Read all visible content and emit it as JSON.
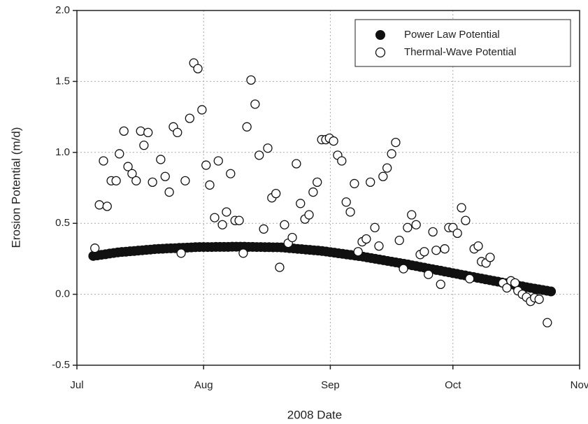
{
  "chart_data": {
    "type": "scatter",
    "xlabel": "2008 Date",
    "ylabel": "Erosion Potential (m/d)",
    "xlim": [
      0,
      123
    ],
    "xticks": [
      {
        "value": 0,
        "label": "Jul"
      },
      {
        "value": 31,
        "label": "Aug"
      },
      {
        "value": 62,
        "label": "Sep"
      },
      {
        "value": 92,
        "label": "Oct"
      },
      {
        "value": 123,
        "label": "Nov"
      }
    ],
    "ylim": [
      -0.5,
      2.0
    ],
    "yticks": [
      -0.5,
      {
        "value": 0,
        "label": "0.0"
      },
      0.5,
      {
        "value": 1,
        "label": "1.0"
      },
      1.5,
      {
        "value": 2,
        "label": "2.0"
      }
    ],
    "grid": true,
    "legend": "upper right",
    "series": [
      {
        "name": "Power Law Potential",
        "color": "#111111",
        "marker": "filled",
        "x": [
          4,
          5,
          6,
          7,
          8,
          9,
          10,
          11,
          12,
          13,
          14,
          15,
          16,
          17,
          18,
          19,
          20,
          21,
          22,
          23,
          24,
          25,
          26,
          27,
          28,
          29,
          30,
          31,
          32,
          33,
          34,
          35,
          36,
          37,
          38,
          39,
          40,
          41,
          42,
          43,
          44,
          45,
          46,
          47,
          48,
          49,
          50,
          51,
          52,
          53,
          54,
          55,
          56,
          57,
          58,
          59,
          60,
          61,
          62,
          63,
          64,
          65,
          66,
          67,
          68,
          69,
          70,
          71,
          72,
          73,
          74,
          75,
          76,
          77,
          78,
          79,
          80,
          81,
          82,
          83,
          84,
          85,
          86,
          87,
          88,
          89,
          90,
          91,
          92,
          93,
          94,
          95,
          96,
          97,
          98,
          99,
          100,
          101,
          102,
          103,
          104,
          105,
          106,
          107,
          108,
          109,
          110,
          111,
          112,
          113,
          114,
          115,
          116
        ],
        "values": [
          0.27,
          0.274,
          0.278,
          0.282,
          0.287,
          0.291,
          0.295,
          0.298,
          0.3,
          0.303,
          0.305,
          0.308,
          0.31,
          0.313,
          0.315,
          0.318,
          0.32,
          0.321,
          0.323,
          0.324,
          0.325,
          0.327,
          0.328,
          0.329,
          0.33,
          0.332,
          0.333,
          0.333,
          0.333,
          0.333,
          0.334,
          0.334,
          0.334,
          0.334,
          0.335,
          0.335,
          0.335,
          0.335,
          0.334,
          0.334,
          0.333,
          0.333,
          0.332,
          0.332,
          0.331,
          0.331,
          0.33,
          0.328,
          0.325,
          0.323,
          0.32,
          0.318,
          0.315,
          0.313,
          0.31,
          0.308,
          0.305,
          0.301,
          0.297,
          0.293,
          0.289,
          0.285,
          0.281,
          0.277,
          0.273,
          0.269,
          0.265,
          0.26,
          0.255,
          0.25,
          0.245,
          0.24,
          0.235,
          0.23,
          0.225,
          0.22,
          0.215,
          0.21,
          0.204,
          0.199,
          0.193,
          0.188,
          0.182,
          0.177,
          0.171,
          0.166,
          0.16,
          0.155,
          0.149,
          0.144,
          0.138,
          0.133,
          0.127,
          0.122,
          0.116,
          0.111,
          0.105,
          0.1,
          0.094,
          0.089,
          0.083,
          0.078,
          0.072,
          0.067,
          0.061,
          0.056,
          0.05,
          0.045,
          0.04,
          0.035,
          0.03,
          0.025,
          0.02
        ]
      },
      {
        "name": "Thermal-Wave Potential",
        "color": "#111111",
        "marker": "open",
        "x": [
          4.4,
          5.5,
          6.5,
          7.4,
          8.4,
          9.6,
          10.4,
          11.5,
          12.5,
          13.5,
          14.5,
          15.6,
          16.4,
          17.4,
          18.5,
          20.5,
          21.6,
          22.6,
          23.6,
          24.6,
          25.5,
          26.5,
          27.6,
          28.6,
          29.6,
          30.6,
          31.6,
          32.5,
          33.7,
          34.6,
          35.6,
          36.6,
          37.6,
          38.7,
          39.7,
          40.7,
          41.6,
          42.6,
          43.6,
          44.6,
          45.7,
          46.7,
          47.7,
          48.7,
          49.6,
          50.8,
          51.7,
          52.7,
          53.7,
          54.7,
          55.8,
          56.8,
          57.8,
          58.8,
          59.9,
          60.9,
          61.8,
          62.8,
          63.8,
          64.8,
          65.9,
          66.9,
          67.9,
          68.8,
          69.8,
          70.8,
          71.8,
          72.9,
          73.9,
          74.9,
          75.9,
          77.0,
          78.0,
          78.9,
          79.9,
          80.9,
          81.9,
          83.0,
          84.0,
          85.0,
          86.0,
          87.1,
          87.9,
          89.0,
          90.0,
          91.0,
          92.0,
          93.1,
          94.1,
          95.1,
          96.1,
          97.2,
          98.2,
          99.0,
          100.1,
          101.1,
          104.2,
          105.2,
          106.2,
          107.2,
          107.9,
          109.0,
          110.0,
          111.0,
          112.0,
          113.1,
          115.1
        ],
        "values": [
          0.325,
          0.63,
          0.94,
          0.62,
          0.8,
          0.8,
          0.99,
          1.15,
          0.9,
          0.85,
          0.8,
          1.15,
          1.05,
          1.14,
          0.79,
          0.95,
          0.83,
          0.72,
          1.18,
          1.14,
          0.29,
          0.8,
          1.24,
          1.63,
          1.59,
          1.3,
          0.91,
          0.77,
          0.54,
          0.94,
          0.49,
          0.58,
          0.85,
          0.52,
          0.52,
          0.29,
          1.18,
          1.51,
          1.34,
          0.98,
          0.46,
          1.03,
          0.68,
          0.71,
          0.19,
          0.49,
          0.36,
          0.4,
          0.92,
          0.64,
          0.53,
          0.56,
          0.72,
          0.79,
          1.09,
          1.09,
          1.1,
          1.08,
          0.98,
          0.94,
          0.65,
          0.58,
          0.78,
          0.3,
          0.37,
          0.39,
          0.79,
          0.47,
          0.34,
          0.83,
          0.89,
          0.99,
          1.07,
          0.38,
          0.18,
          0.47,
          0.56,
          0.49,
          0.28,
          0.3,
          0.14,
          0.44,
          0.31,
          0.07,
          0.32,
          0.47,
          0.47,
          0.43,
          0.61,
          0.52,
          0.11,
          0.32,
          0.34,
          0.23,
          0.22,
          0.26,
          0.08,
          0.045,
          0.095,
          0.08,
          0.025,
          0.0,
          -0.02,
          -0.05,
          -0.025,
          -0.035,
          -0.2
        ]
      }
    ]
  }
}
